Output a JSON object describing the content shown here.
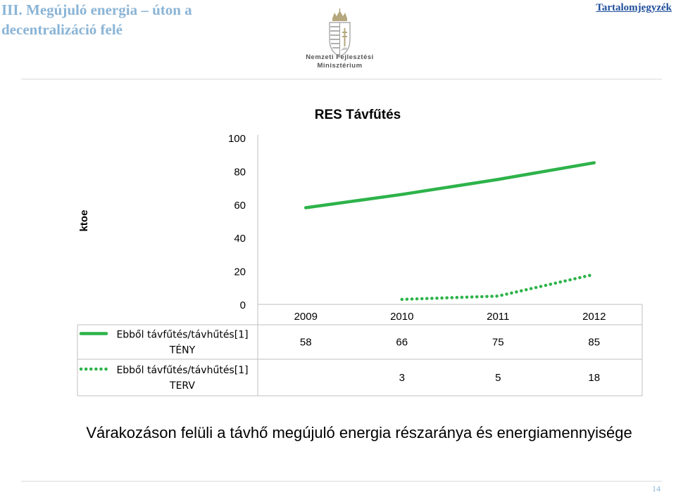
{
  "header": {
    "title": "III. Megújuló energia – úton a decentralizáció felé",
    "toc_link": "Tartalomjegyzék",
    "logo_line1": "Nemzeti Fejlesztési",
    "logo_line2": "Minisztérium"
  },
  "chart_data": {
    "type": "line",
    "title": "RES Távfűtés",
    "ylabel": "ktoe",
    "xlabel": "",
    "ylim": [
      0,
      100
    ],
    "yticks": [
      0,
      20,
      40,
      60,
      80,
      100
    ],
    "categories": [
      "2009",
      "2010",
      "2011",
      "2012"
    ],
    "series": [
      {
        "name": "Ebből távfűtés/távhűtés[1] TÉNY",
        "values": [
          58,
          66,
          75,
          85
        ],
        "style": "solid",
        "color": "#2db34a"
      },
      {
        "name": "Ebből távfűtés/távhűtés[1] TERV",
        "values": [
          null,
          3,
          5,
          18
        ],
        "style": "dotted",
        "color": "#2db34a"
      }
    ],
    "table": [
      [
        "58",
        "66",
        "75",
        "85"
      ],
      [
        "",
        "3",
        "5",
        "18"
      ]
    ],
    "grid": false,
    "legend": "table-left"
  },
  "caption": "Várakozáson felüli a távhő megújuló energia részaránya és energiamennyisége",
  "page_number": "14"
}
